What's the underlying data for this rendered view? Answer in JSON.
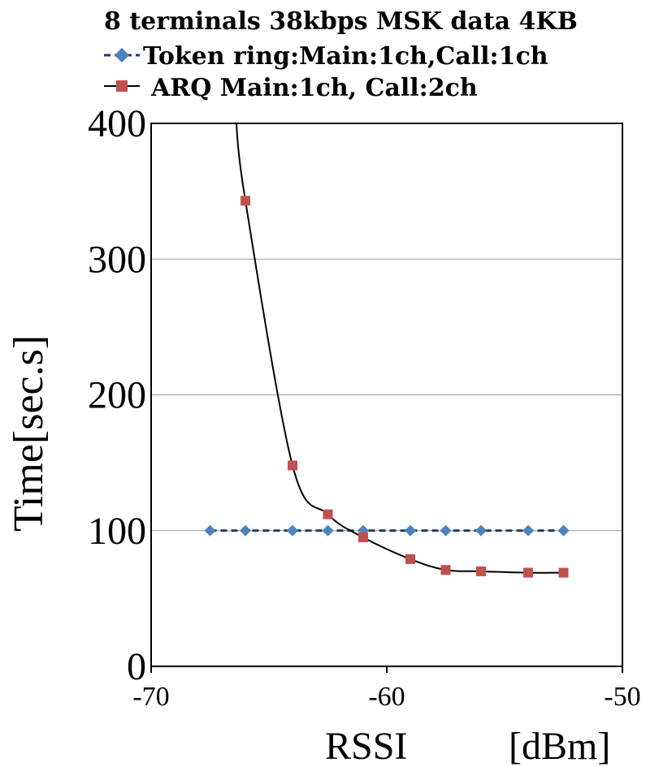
{
  "chart_data": {
    "type": "line",
    "title": "8 terminals  38kbps MSK data 4KB",
    "xlabel": "RSSI",
    "xunit": "[dBm]",
    "ylabel": "Time[sec.s]",
    "xlim": [
      -70,
      -50
    ],
    "ylim": [
      0,
      400
    ],
    "xticks": [
      "-70",
      "-60",
      "-50"
    ],
    "yticks": [
      "0",
      "100",
      "200",
      "300",
      "400"
    ],
    "grid": "horizontal",
    "legend_position": "top",
    "series": [
      {
        "name": "Token ring:Main:1ch,Call:1ch",
        "color": "#4f81bd",
        "line_color": "#1f3864",
        "marker": "diamond",
        "line_style": "dashed",
        "x": [
          -67.5,
          -66,
          -64,
          -62.5,
          -61,
          -59,
          -57.5,
          -56,
          -54,
          -52.5
        ],
        "y": [
          100,
          100,
          100,
          100,
          100,
          100,
          100,
          100,
          100,
          100
        ]
      },
      {
        "name": "ARQ Main:1ch, Call:2ch",
        "color": "#c0504d",
        "line_color": "#000000",
        "marker": "square",
        "line_style": "solid",
        "x": [
          -66,
          -64,
          -62.5,
          -61,
          -59,
          -57.5,
          -56,
          -54,
          -52.5
        ],
        "y": [
          343,
          148,
          112,
          95,
          79,
          71,
          70,
          69,
          69
        ]
      }
    ]
  }
}
